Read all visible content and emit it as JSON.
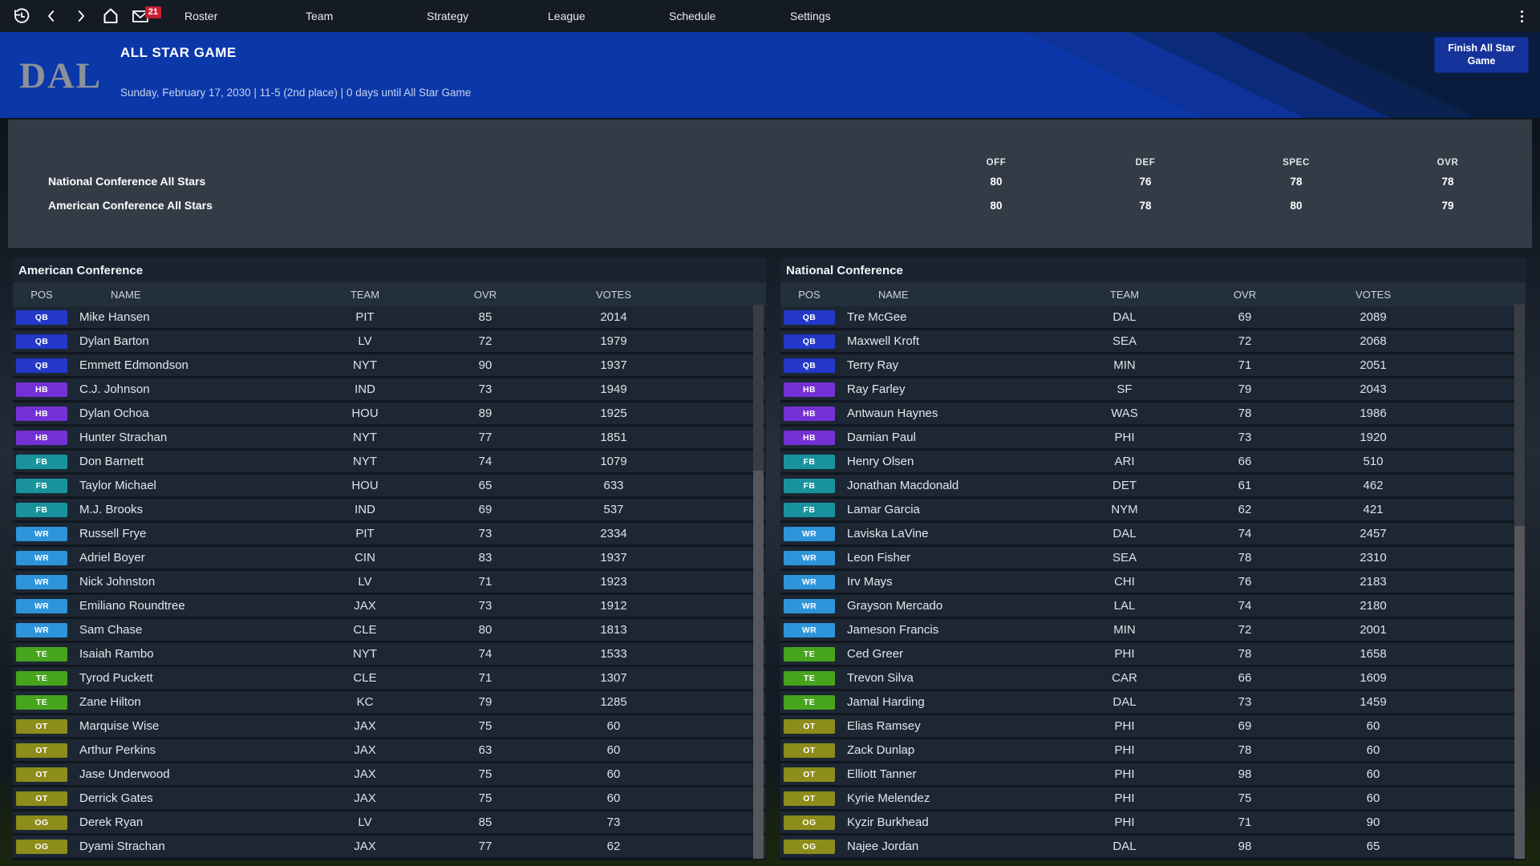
{
  "topnav": {
    "items": [
      "Roster",
      "Team",
      "Strategy",
      "League",
      "Schedule",
      "Settings"
    ],
    "mail_badge": "21"
  },
  "header": {
    "team_abbr": "DAL",
    "title": "ALL STAR GAME",
    "subtitle": "Sunday, February 17, 2030 | 11-5 (2nd place) | 0 days until All Star Game",
    "action_button": "Finish All Star Game"
  },
  "summary": {
    "columns": [
      "OFF",
      "DEF",
      "SPEC",
      "OVR"
    ],
    "rows": [
      {
        "label": "National Conference All Stars",
        "values": [
          "80",
          "76",
          "78",
          "78"
        ]
      },
      {
        "label": "American Conference All Stars",
        "values": [
          "80",
          "78",
          "80",
          "79"
        ]
      }
    ]
  },
  "pos_colors": {
    "QB": "#2438c9",
    "HB": "#7530d5",
    "FB": "#18939d",
    "WR": "#2d94da",
    "TE": "#47a41d",
    "OT": "#8c8d1a",
    "OG": "#8c8d1a"
  },
  "tables": [
    {
      "title": "American Conference",
      "columns": [
        "POS",
        "NAME",
        "TEAM",
        "OVR",
        "VOTES"
      ],
      "scroll_thumb_pct": 30,
      "rows": [
        [
          "QB",
          "Mike Hansen",
          "PIT",
          "85",
          "2014"
        ],
        [
          "QB",
          "Dylan Barton",
          "LV",
          "72",
          "1979"
        ],
        [
          "QB",
          "Emmett Edmondson",
          "NYT",
          "90",
          "1937"
        ],
        [
          "HB",
          "C.J. Johnson",
          "IND",
          "73",
          "1949"
        ],
        [
          "HB",
          "Dylan Ochoa",
          "HOU",
          "89",
          "1925"
        ],
        [
          "HB",
          "Hunter Strachan",
          "NYT",
          "77",
          "1851"
        ],
        [
          "FB",
          "Don Barnett",
          "NYT",
          "74",
          "1079"
        ],
        [
          "FB",
          "Taylor Michael",
          "HOU",
          "65",
          "633"
        ],
        [
          "FB",
          "M.J. Brooks",
          "IND",
          "69",
          "537"
        ],
        [
          "WR",
          "Russell Frye",
          "PIT",
          "73",
          "2334"
        ],
        [
          "WR",
          "Adriel Boyer",
          "CIN",
          "83",
          "1937"
        ],
        [
          "WR",
          "Nick Johnston",
          "LV",
          "71",
          "1923"
        ],
        [
          "WR",
          "Emiliano Roundtree",
          "JAX",
          "73",
          "1912"
        ],
        [
          "WR",
          "Sam Chase",
          "CLE",
          "80",
          "1813"
        ],
        [
          "TE",
          "Isaiah Rambo",
          "NYT",
          "74",
          "1533"
        ],
        [
          "TE",
          "Tyrod Puckett",
          "CLE",
          "71",
          "1307"
        ],
        [
          "TE",
          "Zane Hilton",
          "KC",
          "79",
          "1285"
        ],
        [
          "OT",
          "Marquise Wise",
          "JAX",
          "75",
          "60"
        ],
        [
          "OT",
          "Arthur Perkins",
          "JAX",
          "63",
          "60"
        ],
        [
          "OT",
          "Jase Underwood",
          "JAX",
          "75",
          "60"
        ],
        [
          "OT",
          "Derrick Gates",
          "JAX",
          "75",
          "60"
        ],
        [
          "OG",
          "Derek Ryan",
          "LV",
          "85",
          "73"
        ],
        [
          "OG",
          "Dyami Strachan",
          "JAX",
          "77",
          "62"
        ]
      ]
    },
    {
      "title": "National Conference",
      "columns": [
        "POS",
        "NAME",
        "TEAM",
        "OVR",
        "VOTES"
      ],
      "scroll_thumb_pct": 40,
      "rows": [
        [
          "QB",
          "Tre McGee",
          "DAL",
          "69",
          "2089"
        ],
        [
          "QB",
          "Maxwell Kroft",
          "SEA",
          "72",
          "2068"
        ],
        [
          "QB",
          "Terry Ray",
          "MIN",
          "71",
          "2051"
        ],
        [
          "HB",
          "Ray Farley",
          "SF",
          "79",
          "2043"
        ],
        [
          "HB",
          "Antwaun Haynes",
          "WAS",
          "78",
          "1986"
        ],
        [
          "HB",
          "Damian Paul",
          "PHI",
          "73",
          "1920"
        ],
        [
          "FB",
          "Henry Olsen",
          "ARI",
          "66",
          "510"
        ],
        [
          "FB",
          "Jonathan Macdonald",
          "DET",
          "61",
          "462"
        ],
        [
          "FB",
          "Lamar Garcia",
          "NYM",
          "62",
          "421"
        ],
        [
          "WR",
          "Laviska LaVine",
          "DAL",
          "74",
          "2457"
        ],
        [
          "WR",
          "Leon Fisher",
          "SEA",
          "78",
          "2310"
        ],
        [
          "WR",
          "Irv Mays",
          "CHI",
          "76",
          "2183"
        ],
        [
          "WR",
          "Grayson Mercado",
          "LAL",
          "74",
          "2180"
        ],
        [
          "WR",
          "Jameson Francis",
          "MIN",
          "72",
          "2001"
        ],
        [
          "TE",
          "Ced Greer",
          "PHI",
          "78",
          "1658"
        ],
        [
          "TE",
          "Trevon Silva",
          "CAR",
          "66",
          "1609"
        ],
        [
          "TE",
          "Jamal Harding",
          "DAL",
          "73",
          "1459"
        ],
        [
          "OT",
          "Elias Ramsey",
          "PHI",
          "69",
          "60"
        ],
        [
          "OT",
          "Zack Dunlap",
          "PHI",
          "78",
          "60"
        ],
        [
          "OT",
          "Elliott Tanner",
          "PHI",
          "98",
          "60"
        ],
        [
          "OT",
          "Kyrie Melendez",
          "PHI",
          "75",
          "60"
        ],
        [
          "OG",
          "Kyzir Burkhead",
          "PHI",
          "71",
          "90"
        ],
        [
          "OG",
          "Najee Jordan",
          "DAL",
          "98",
          "65"
        ]
      ]
    }
  ]
}
